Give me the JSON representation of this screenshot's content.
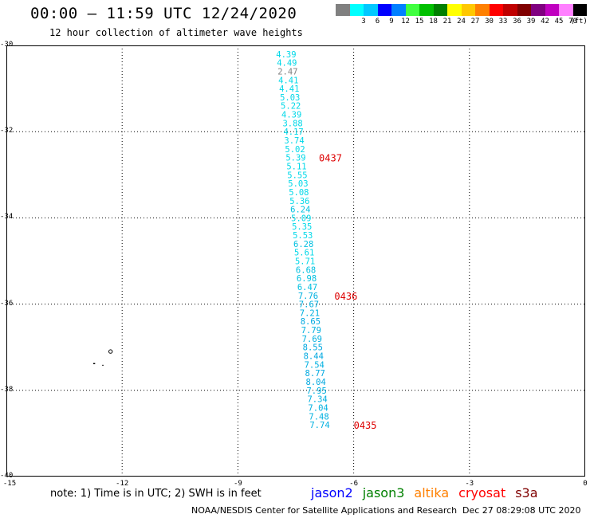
{
  "header": {
    "title": "00:00 – 11:59 UTC 12/24/2020",
    "subtitle": "12 hour collection of altimeter wave heights"
  },
  "legend": {
    "unit": "(ft)",
    "colors": [
      "#808080",
      "#00ffff",
      "#00c8ff",
      "#0000ff",
      "#0080ff",
      "#40ff40",
      "#00c000",
      "#008000",
      "#ffff00",
      "#ffc800",
      "#ff8000",
      "#ff0000",
      "#c00000",
      "#800000",
      "#800080",
      "#c000c0",
      "#ff80ff",
      "#000000"
    ],
    "labels": [
      "3",
      "6",
      "9",
      "12",
      "15",
      "18",
      "21",
      "24",
      "27",
      "30",
      "33",
      "36",
      "39",
      "42",
      "45",
      "70"
    ]
  },
  "axes": {
    "y_ticks": [
      "-30",
      "-32",
      "-34",
      "-36",
      "-38",
      "-40"
    ],
    "x_ticks": [
      "-15",
      "-12",
      "-9",
      "-6",
      "-3",
      "0"
    ]
  },
  "chart_data": {
    "type": "scatter",
    "lat_range": [
      -40,
      -30
    ],
    "lon_range": [
      -15,
      0
    ],
    "track_points": [
      {
        "lat": -30.2,
        "lon": -7.75,
        "value": "4.39",
        "color": "#00d8e8"
      },
      {
        "lat": -30.4,
        "lon": -7.73,
        "value": "4.49",
        "color": "#00d8e8"
      },
      {
        "lat": -30.6,
        "lon": -7.71,
        "value": "2.47",
        "color": "#808080"
      },
      {
        "lat": -30.8,
        "lon": -7.69,
        "value": "4.41",
        "color": "#00d8e8"
      },
      {
        "lat": -31.0,
        "lon": -7.67,
        "value": "4.41",
        "color": "#00d8e8"
      },
      {
        "lat": -31.2,
        "lon": -7.65,
        "value": "5.03",
        "color": "#00d8e8"
      },
      {
        "lat": -31.4,
        "lon": -7.63,
        "value": "5.22",
        "color": "#00d8e8"
      },
      {
        "lat": -31.6,
        "lon": -7.61,
        "value": "4.39",
        "color": "#00d8e8"
      },
      {
        "lat": -31.8,
        "lon": -7.58,
        "value": "3.88",
        "color": "#00d8e8"
      },
      {
        "lat": -32.0,
        "lon": -7.56,
        "value": "4.17",
        "color": "#00d8e8"
      },
      {
        "lat": -32.2,
        "lon": -7.54,
        "value": "3.74",
        "color": "#00d8e8"
      },
      {
        "lat": -32.4,
        "lon": -7.52,
        "value": "5.02",
        "color": "#00d8e8"
      },
      {
        "lat": -32.6,
        "lon": -7.5,
        "value": "5.39",
        "color": "#00d8e8"
      },
      {
        "lat": -32.8,
        "lon": -7.48,
        "value": "5.11",
        "color": "#00d8e8"
      },
      {
        "lat": -33.0,
        "lon": -7.46,
        "value": "5.55",
        "color": "#00d8e8"
      },
      {
        "lat": -33.2,
        "lon": -7.44,
        "value": "5.03",
        "color": "#00d8e8"
      },
      {
        "lat": -33.4,
        "lon": -7.42,
        "value": "5.08",
        "color": "#00d8e8"
      },
      {
        "lat": -33.6,
        "lon": -7.4,
        "value": "5.36",
        "color": "#00d8e8"
      },
      {
        "lat": -33.8,
        "lon": -7.38,
        "value": "6.24",
        "color": "#00c0e0"
      },
      {
        "lat": -34.0,
        "lon": -7.36,
        "value": "5.09",
        "color": "#00d8e8"
      },
      {
        "lat": -34.2,
        "lon": -7.34,
        "value": "5.35",
        "color": "#00d8e8"
      },
      {
        "lat": -34.4,
        "lon": -7.32,
        "value": "5.53",
        "color": "#00d8e8"
      },
      {
        "lat": -34.6,
        "lon": -7.3,
        "value": "6.28",
        "color": "#00c0e0"
      },
      {
        "lat": -34.8,
        "lon": -7.28,
        "value": "5.61",
        "color": "#00d8e8"
      },
      {
        "lat": -35.0,
        "lon": -7.26,
        "value": "5.71",
        "color": "#00d8e8"
      },
      {
        "lat": -35.2,
        "lon": -7.24,
        "value": "6.68",
        "color": "#00c0e0"
      },
      {
        "lat": -35.4,
        "lon": -7.22,
        "value": "6.98",
        "color": "#00c0e0"
      },
      {
        "lat": -35.6,
        "lon": -7.2,
        "value": "6.47",
        "color": "#00c0e0"
      },
      {
        "lat": -35.8,
        "lon": -7.18,
        "value": "7.76",
        "color": "#00b0e0"
      },
      {
        "lat": -36.0,
        "lon": -7.16,
        "value": "7.67",
        "color": "#00b0e0"
      },
      {
        "lat": -36.2,
        "lon": -7.14,
        "value": "7.21",
        "color": "#00b0e0"
      },
      {
        "lat": -36.4,
        "lon": -7.12,
        "value": "8.65",
        "color": "#00a8e0"
      },
      {
        "lat": -36.6,
        "lon": -7.1,
        "value": "7.79",
        "color": "#00b0e0"
      },
      {
        "lat": -36.8,
        "lon": -7.08,
        "value": "7.69",
        "color": "#00b0e0"
      },
      {
        "lat": -37.0,
        "lon": -7.06,
        "value": "8.55",
        "color": "#00a8e0"
      },
      {
        "lat": -37.2,
        "lon": -7.04,
        "value": "8.44",
        "color": "#00a8e0"
      },
      {
        "lat": -37.4,
        "lon": -7.02,
        "value": "7.54",
        "color": "#00b0e0"
      },
      {
        "lat": -37.6,
        "lon": -7.0,
        "value": "8.77",
        "color": "#00a8e0"
      },
      {
        "lat": -37.8,
        "lon": -6.98,
        "value": "8.04",
        "color": "#00a8e0"
      },
      {
        "lat": -38.0,
        "lon": -6.96,
        "value": "7.95",
        "color": "#00b0e0"
      },
      {
        "lat": -38.2,
        "lon": -6.94,
        "value": "7.34",
        "color": "#00b0e0"
      },
      {
        "lat": -38.4,
        "lon": -6.92,
        "value": "7.04",
        "color": "#00b0e0"
      },
      {
        "lat": -38.6,
        "lon": -6.9,
        "value": "7.48",
        "color": "#00b0e0"
      },
      {
        "lat": -38.8,
        "lon": -6.88,
        "value": "7.74",
        "color": "#00b0e0"
      }
    ],
    "time_labels": [
      {
        "lat": -32.6,
        "lon": -6.9,
        "text": "0437"
      },
      {
        "lat": -35.8,
        "lon": -6.5,
        "text": "0436"
      },
      {
        "lat": -38.8,
        "lon": -6.0,
        "text": "0435"
      }
    ]
  },
  "footer": {
    "note": "note: 1) Time is in UTC; 2) SWH is in feet",
    "satellites": [
      {
        "name": "jason2",
        "color": "#0000ff"
      },
      {
        "name": "jason3",
        "color": "#008000"
      },
      {
        "name": "altika",
        "color": "#ff8000"
      },
      {
        "name": "cryosat",
        "color": "#ff0000"
      },
      {
        "name": "s3a",
        "color": "#800000"
      }
    ],
    "credit": "NOAA/NESDIS Center for Satellite Applications and Research",
    "timestamp": "Dec 27 08:29:08 UTC 2020"
  }
}
